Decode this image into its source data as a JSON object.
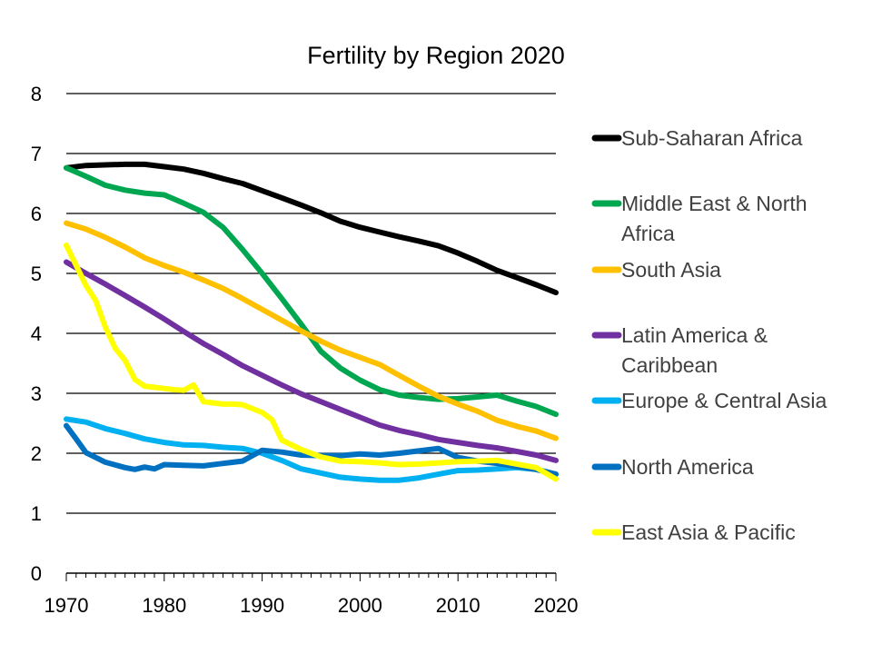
{
  "chart_data": {
    "type": "line",
    "title": "Fertility by Region 2020",
    "xlabel": "",
    "ylabel": "",
    "xlim": [
      1970,
      2020
    ],
    "ylim": [
      0,
      8
    ],
    "xticks": [
      1970,
      1980,
      1990,
      2000,
      2010,
      2020
    ],
    "yticks": [
      0,
      1,
      2,
      3,
      4,
      5,
      6,
      7,
      8
    ],
    "grid": "horizontal",
    "legend": "right",
    "series": [
      {
        "name": "Sub-Saharan Africa",
        "legend_lines": [
          "Sub-Saharan Africa"
        ],
        "color": "#000000",
        "x": [
          1970,
          1972,
          1974,
          1976,
          1978,
          1980,
          1982,
          1984,
          1986,
          1988,
          1990,
          1992,
          1994,
          1996,
          1998,
          2000,
          2002,
          2004,
          2006,
          2008,
          2010,
          2012,
          2014,
          2016,
          2018,
          2020
        ],
        "values": [
          6.76,
          6.8,
          6.81,
          6.82,
          6.82,
          6.78,
          6.74,
          6.67,
          6.58,
          6.5,
          6.38,
          6.26,
          6.14,
          6.01,
          5.87,
          5.77,
          5.69,
          5.61,
          5.54,
          5.46,
          5.34,
          5.2,
          5.05,
          4.93,
          4.81,
          4.68
        ]
      },
      {
        "name": "Middle East & North Africa",
        "legend_lines": [
          "Middle East & North",
          "Africa"
        ],
        "color": "#00A650",
        "x": [
          1970,
          1972,
          1974,
          1976,
          1978,
          1980,
          1982,
          1984,
          1986,
          1988,
          1990,
          1992,
          1994,
          1996,
          1998,
          2000,
          2002,
          2004,
          2006,
          2008,
          2010,
          2012,
          2014,
          2016,
          2018,
          2020
        ],
        "values": [
          6.76,
          6.62,
          6.47,
          6.39,
          6.34,
          6.31,
          6.17,
          6.02,
          5.77,
          5.4,
          5.0,
          4.58,
          4.15,
          3.7,
          3.42,
          3.22,
          3.06,
          2.97,
          2.93,
          2.9,
          2.91,
          2.94,
          2.97,
          2.87,
          2.78,
          2.65
        ]
      },
      {
        "name": "South Asia",
        "legend_lines": [
          "South Asia"
        ],
        "color": "#FFC000",
        "x": [
          1970,
          1972,
          1974,
          1976,
          1978,
          1980,
          1982,
          1984,
          1986,
          1988,
          1990,
          1992,
          1994,
          1996,
          1998,
          2000,
          2002,
          2004,
          2006,
          2008,
          2010,
          2012,
          2014,
          2016,
          2018,
          2020
        ],
        "values": [
          5.84,
          5.74,
          5.6,
          5.44,
          5.26,
          5.13,
          5.02,
          4.89,
          4.75,
          4.58,
          4.4,
          4.22,
          4.04,
          3.87,
          3.72,
          3.6,
          3.48,
          3.3,
          3.12,
          2.95,
          2.82,
          2.7,
          2.55,
          2.45,
          2.37,
          2.25
        ]
      },
      {
        "name": "Latin America & Caribbean",
        "legend_lines": [
          "Latin America &",
          "Caribbean"
        ],
        "color": "#7030A0",
        "x": [
          1970,
          1972,
          1974,
          1976,
          1978,
          1980,
          1982,
          1984,
          1986,
          1988,
          1990,
          1992,
          1994,
          1996,
          1998,
          2000,
          2002,
          2004,
          2006,
          2008,
          2010,
          2012,
          2014,
          2016,
          2018,
          2020
        ],
        "values": [
          5.19,
          5.0,
          4.82,
          4.63,
          4.44,
          4.24,
          4.03,
          3.83,
          3.65,
          3.46,
          3.3,
          3.14,
          2.99,
          2.86,
          2.73,
          2.6,
          2.47,
          2.38,
          2.31,
          2.23,
          2.18,
          2.13,
          2.09,
          2.03,
          1.97,
          1.88
        ]
      },
      {
        "name": "Europe & Central Asia",
        "legend_lines": [
          "Europe & Central Asia"
        ],
        "color": "#00B0F0",
        "x": [
          1970,
          1972,
          1974,
          1976,
          1978,
          1980,
          1982,
          1984,
          1986,
          1988,
          1990,
          1992,
          1994,
          1996,
          1998,
          2000,
          2002,
          2004,
          2006,
          2008,
          2010,
          2012,
          2014,
          2016,
          2018,
          2020
        ],
        "values": [
          2.57,
          2.52,
          2.41,
          2.33,
          2.24,
          2.18,
          2.14,
          2.13,
          2.1,
          2.08,
          2.0,
          1.88,
          1.74,
          1.67,
          1.6,
          1.57,
          1.55,
          1.55,
          1.59,
          1.65,
          1.71,
          1.72,
          1.74,
          1.76,
          1.73,
          1.65
        ]
      },
      {
        "name": "North America",
        "legend_lines": [
          "North America"
        ],
        "color": "#0070C0",
        "x": [
          1970,
          1971,
          1972,
          1974,
          1976,
          1977,
          1978,
          1979,
          1980,
          1982,
          1984,
          1986,
          1988,
          1990,
          1992,
          1994,
          1996,
          1998,
          2000,
          2002,
          2004,
          2006,
          2008,
          2010,
          2012,
          2014,
          2016,
          2018,
          2020
        ],
        "values": [
          2.46,
          2.24,
          2.01,
          1.85,
          1.76,
          1.73,
          1.77,
          1.74,
          1.81,
          1.8,
          1.79,
          1.83,
          1.87,
          2.05,
          2.02,
          1.97,
          1.96,
          1.96,
          1.99,
          1.97,
          2.0,
          2.04,
          2.08,
          1.93,
          1.87,
          1.83,
          1.78,
          1.73,
          1.65
        ]
      },
      {
        "name": "East Asia & Pacific",
        "legend_lines": [
          "East Asia & Pacific"
        ],
        "color": "#FFFF00",
        "x": [
          1970,
          1972,
          1973,
          1974,
          1975,
          1976,
          1977,
          1978,
          1980,
          1981,
          1982,
          1983,
          1984,
          1986,
          1987,
          1988,
          1990,
          1991,
          1992,
          1994,
          1996,
          1998,
          2000,
          2002,
          2004,
          2006,
          2008,
          2010,
          2012,
          2014,
          2016,
          2018,
          2020
        ],
        "values": [
          5.47,
          4.8,
          4.55,
          4.1,
          3.75,
          3.55,
          3.23,
          3.12,
          3.08,
          3.06,
          3.05,
          3.14,
          2.86,
          2.82,
          2.82,
          2.81,
          2.68,
          2.56,
          2.22,
          2.06,
          1.94,
          1.87,
          1.86,
          1.84,
          1.81,
          1.82,
          1.84,
          1.86,
          1.87,
          1.88,
          1.82,
          1.76,
          1.57
        ]
      }
    ]
  }
}
